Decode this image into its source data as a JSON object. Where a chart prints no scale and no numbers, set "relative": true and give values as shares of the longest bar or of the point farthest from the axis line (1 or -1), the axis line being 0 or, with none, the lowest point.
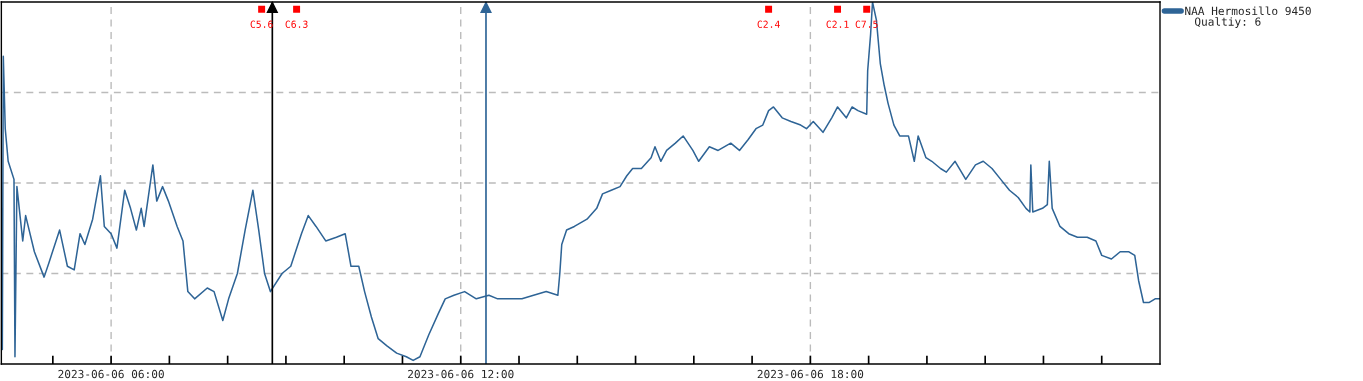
{
  "chart_data": {
    "type": "line",
    "relative": true,
    "x": [
      "2023-06-06T04:08",
      "2023-06-06T04:09",
      "2023-06-06T04:11",
      "2023-06-06T04:14",
      "2023-06-06T04:20",
      "2023-06-06T04:21",
      "2023-06-06T04:23",
      "2023-06-06T04:29",
      "2023-06-06T04:32",
      "2023-06-06T04:41",
      "2023-06-06T04:51",
      "2023-06-06T04:56",
      "2023-06-06T05:07",
      "2023-06-06T05:15",
      "2023-06-06T05:22",
      "2023-06-06T05:28",
      "2023-06-06T05:33",
      "2023-06-06T05:41",
      "2023-06-06T05:49",
      "2023-06-06T05:53",
      "2023-06-06T06:00",
      "2023-06-06T06:06",
      "2023-06-06T06:14",
      "2023-06-06T06:20",
      "2023-06-06T06:26",
      "2023-06-06T06:31",
      "2023-06-06T06:34",
      "2023-06-06T06:43",
      "2023-06-06T06:47",
      "2023-06-06T06:53",
      "2023-06-06T06:59",
      "2023-06-06T07:08",
      "2023-06-06T07:14",
      "2023-06-06T07:19",
      "2023-06-06T07:26",
      "2023-06-06T07:39",
      "2023-06-06T07:46",
      "2023-06-06T07:55",
      "2023-06-06T08:01",
      "2023-06-06T08:10",
      "2023-06-06T08:18",
      "2023-06-06T08:26",
      "2023-06-06T08:32",
      "2023-06-06T08:38",
      "2023-06-06T08:44",
      "2023-06-06T08:56",
      "2023-06-06T09:05",
      "2023-06-06T09:16",
      "2023-06-06T09:23",
      "2023-06-06T09:31",
      "2023-06-06T09:41",
      "2023-06-06T09:52",
      "2023-06-06T10:01",
      "2023-06-06T10:07",
      "2023-06-06T10:15",
      "2023-06-06T10:21",
      "2023-06-06T10:28",
      "2023-06-06T10:35",
      "2023-06-06T10:44",
      "2023-06-06T10:54",
      "2023-06-06T11:04",
      "2023-06-06T11:11",
      "2023-06-06T11:18",
      "2023-06-06T11:27",
      "2023-06-06T11:37",
      "2023-06-06T11:44",
      "2023-06-06T11:53",
      "2023-06-06T12:04",
      "2023-06-06T12:16",
      "2023-06-06T12:29",
      "2023-06-06T12:38",
      "2023-06-06T12:50",
      "2023-06-06T13:03",
      "2023-06-06T13:15",
      "2023-06-06T13:28",
      "2023-06-06T13:40",
      "2023-06-06T13:42",
      "2023-06-06T13:44",
      "2023-06-06T13:49",
      "2023-06-06T13:57",
      "2023-06-06T14:10",
      "2023-06-06T14:20",
      "2023-06-06T14:26",
      "2023-06-06T14:35",
      "2023-06-06T14:44",
      "2023-06-06T14:51",
      "2023-06-06T14:57",
      "2023-06-06T15:06",
      "2023-06-06T15:16",
      "2023-06-06T15:20",
      "2023-06-06T15:26",
      "2023-06-06T15:32",
      "2023-06-06T15:41",
      "2023-06-06T15:49",
      "2023-06-06T15:59",
      "2023-06-06T16:05",
      "2023-06-06T16:16",
      "2023-06-06T16:25",
      "2023-06-06T16:38",
      "2023-06-06T16:47",
      "2023-06-06T16:56",
      "2023-06-06T17:04",
      "2023-06-06T17:11",
      "2023-06-06T17:17",
      "2023-06-06T17:22",
      "2023-06-06T17:31",
      "2023-06-06T17:40",
      "2023-06-06T17:50",
      "2023-06-06T17:56",
      "2023-06-06T18:03",
      "2023-06-06T18:13",
      "2023-06-06T18:22",
      "2023-06-06T18:28",
      "2023-06-06T18:37",
      "2023-06-06T18:43",
      "2023-06-06T18:49",
      "2023-06-06T18:58",
      "2023-06-06T18:59",
      "2023-06-06T19:02",
      "2023-06-06T19:04",
      "2023-06-06T19:08",
      "2023-06-06T19:12",
      "2023-06-06T19:16",
      "2023-06-06T19:20",
      "2023-06-06T19:26",
      "2023-06-06T19:32",
      "2023-06-06T19:41",
      "2023-06-06T19:47",
      "2023-06-06T19:51",
      "2023-06-06T19:59",
      "2023-06-06T20:05",
      "2023-06-06T20:14",
      "2023-06-06T20:20",
      "2023-06-06T20:29",
      "2023-06-06T20:40",
      "2023-06-06T20:50",
      "2023-06-06T20:58",
      "2023-06-06T21:07",
      "2023-06-06T21:16",
      "2023-06-06T21:25",
      "2023-06-06T21:34",
      "2023-06-06T21:42",
      "2023-06-06T21:46",
      "2023-06-06T21:47",
      "2023-06-06T21:49",
      "2023-06-06T21:59",
      "2023-06-06T22:04",
      "2023-06-06T22:06",
      "2023-06-06T22:09",
      "2023-06-06T22:17",
      "2023-06-06T22:26",
      "2023-06-06T22:35",
      "2023-06-06T22:45",
      "2023-06-06T22:54",
      "2023-06-06T23:00",
      "2023-06-06T23:10",
      "2023-06-06T23:19",
      "2023-06-06T23:28",
      "2023-06-06T23:34",
      "2023-06-06T23:38",
      "2023-06-06T23:43",
      "2023-06-06T23:49",
      "2023-06-06T23:55",
      "2023-06-07T00:00"
    ],
    "series": [
      {
        "name": "NAA Hermosillo 9450",
        "color": "#2e6496",
        "values": [
          0.04,
          0.85,
          0.65,
          0.56,
          0.51,
          0.02,
          0.49,
          0.34,
          0.41,
          0.31,
          0.24,
          0.28,
          0.37,
          0.27,
          0.26,
          0.36,
          0.33,
          0.4,
          0.52,
          0.38,
          0.36,
          0.32,
          0.48,
          0.43,
          0.37,
          0.43,
          0.38,
          0.55,
          0.45,
          0.49,
          0.45,
          0.38,
          0.34,
          0.2,
          0.18,
          0.21,
          0.2,
          0.12,
          0.18,
          0.25,
          0.37,
          0.48,
          0.37,
          0.25,
          0.2,
          0.25,
          0.27,
          0.36,
          0.41,
          0.38,
          0.34,
          0.35,
          0.36,
          0.27,
          0.27,
          0.2,
          0.13,
          0.07,
          0.05,
          0.03,
          0.02,
          0.01,
          0.02,
          0.08,
          0.14,
          0.18,
          0.19,
          0.2,
          0.18,
          0.19,
          0.18,
          0.18,
          0.18,
          0.19,
          0.2,
          0.19,
          0.25,
          0.33,
          0.37,
          0.38,
          0.4,
          0.43,
          0.47,
          0.48,
          0.49,
          0.52,
          0.54,
          0.54,
          0.57,
          0.6,
          0.56,
          0.59,
          0.61,
          0.63,
          0.59,
          0.56,
          0.6,
          0.59,
          0.61,
          0.59,
          0.62,
          0.65,
          0.66,
          0.7,
          0.71,
          0.68,
          0.67,
          0.66,
          0.65,
          0.67,
          0.64,
          0.68,
          0.71,
          0.68,
          0.71,
          0.7,
          0.69,
          0.81,
          0.91,
          1.0,
          0.95,
          0.83,
          0.77,
          0.72,
          0.66,
          0.63,
          0.63,
          0.56,
          0.63,
          0.57,
          0.56,
          0.54,
          0.53,
          0.56,
          0.51,
          0.55,
          0.56,
          0.54,
          0.51,
          0.48,
          0.46,
          0.43,
          0.42,
          0.55,
          0.42,
          0.43,
          0.44,
          0.56,
          0.43,
          0.38,
          0.36,
          0.35,
          0.35,
          0.34,
          0.3,
          0.29,
          0.31,
          0.31,
          0.3,
          0.23,
          0.17,
          0.17,
          0.18,
          0.18
        ]
      }
    ],
    "xlim": [
      "2023-06-06T04:07",
      "2023-06-07T00:00"
    ],
    "xticks": [
      {
        "value": "2023-06-06T05:00",
        "label": null
      },
      {
        "value": "2023-06-06T06:00",
        "label": "2023-06-06 06:00"
      },
      {
        "value": "2023-06-06T07:00",
        "label": null
      },
      {
        "value": "2023-06-06T08:00",
        "label": null
      },
      {
        "value": "2023-06-06T09:00",
        "label": null
      },
      {
        "value": "2023-06-06T10:00",
        "label": null
      },
      {
        "value": "2023-06-06T11:00",
        "label": null
      },
      {
        "value": "2023-06-06T12:00",
        "label": "2023-06-06 12:00"
      },
      {
        "value": "2023-06-06T13:00",
        "label": null
      },
      {
        "value": "2023-06-06T14:00",
        "label": null
      },
      {
        "value": "2023-06-06T15:00",
        "label": null
      },
      {
        "value": "2023-06-06T16:00",
        "label": null
      },
      {
        "value": "2023-06-06T17:00",
        "label": null
      },
      {
        "value": "2023-06-06T18:00",
        "label": "2023-06-06 18:00"
      },
      {
        "value": "2023-06-06T19:00",
        "label": null
      },
      {
        "value": "2023-06-06T20:00",
        "label": null
      },
      {
        "value": "2023-06-06T21:00",
        "label": null
      },
      {
        "value": "2023-06-06T22:00",
        "label": null
      },
      {
        "value": "2023-06-06T23:00",
        "label": null
      }
    ],
    "ref_lines": [
      {
        "axis": "x",
        "value": "2023-06-06T08:46",
        "color": "#000000"
      },
      {
        "axis": "x",
        "value": "2023-06-06T12:26",
        "color": "#2e6496"
      }
    ],
    "annotations": [
      {
        "text": "C5.6",
        "x": "2023-06-06T08:35",
        "y": 0.98
      },
      {
        "text": "C6.3",
        "x": "2023-06-06T09:11",
        "y": 0.98
      },
      {
        "text": "C2.4",
        "x": "2023-06-06T17:17",
        "y": 0.98
      },
      {
        "text": "C2.1",
        "x": "2023-06-06T18:28",
        "y": 0.98
      },
      {
        "text": "C7.5",
        "x": "2023-06-06T18:58",
        "y": 0.98
      },
      "Qualtiy: 6"
    ],
    "grid": true,
    "legend": "top right",
    "tick_labels": "x",
    "marker": "none",
    "line_style": "solid"
  }
}
